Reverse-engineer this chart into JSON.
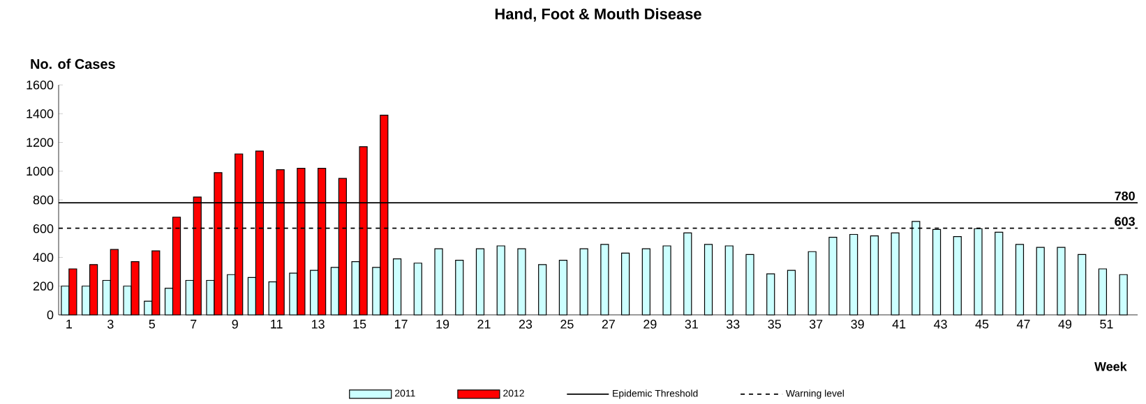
{
  "chart_data": {
    "type": "bar",
    "title": "Hand, Foot &  Mouth Disease",
    "xlabel": "Week",
    "ylabel": "No. of Cases",
    "categories": [
      "1",
      null,
      "3",
      null,
      "5",
      null,
      "7",
      null,
      "9",
      null,
      "11",
      null,
      "13",
      null,
      "15",
      null,
      "17",
      null,
      "19",
      null,
      "21",
      null,
      "23",
      null,
      "25",
      null,
      "27",
      null,
      "29",
      null,
      "31",
      null,
      "33",
      null,
      "35",
      null,
      "37",
      null,
      "39",
      null,
      "41",
      null,
      "43",
      null,
      "45",
      null,
      "47",
      null,
      "49",
      null,
      "51",
      null
    ],
    "series": [
      {
        "name": "2011",
        "color": "#ccffff",
        "values": [
          200,
          200,
          240,
          200,
          95,
          185,
          240,
          240,
          280,
          260,
          230,
          290,
          310,
          330,
          370,
          330,
          390,
          360,
          460,
          380,
          460,
          480,
          460,
          350,
          380,
          460,
          490,
          430,
          460,
          480,
          570,
          490,
          480,
          420,
          285,
          310,
          440,
          540,
          560,
          550,
          570,
          650,
          595,
          545,
          600,
          575,
          490,
          470,
          470,
          420,
          320,
          280
        ]
      },
      {
        "name": "2012",
        "color": "#ff0000",
        "values": [
          320,
          350,
          455,
          370,
          445,
          680,
          820,
          990,
          1120,
          1140,
          1010,
          1020,
          1020,
          950,
          1170,
          1390,
          null,
          null,
          null,
          null,
          null,
          null,
          null,
          null,
          null,
          null,
          null,
          null,
          null,
          null,
          null,
          null,
          null,
          null,
          null,
          null,
          null,
          null,
          null,
          null,
          null,
          null,
          null,
          null,
          null,
          null,
          null,
          null,
          null,
          null,
          null,
          null
        ]
      }
    ],
    "ylim": [
      0,
      1600
    ],
    "yticks": [
      0,
      200,
      400,
      600,
      800,
      1000,
      1200,
      1400,
      1600
    ],
    "ref_lines": [
      {
        "axis": "y",
        "value": 780,
        "label": "Epidemic Threshold",
        "color": "#000000",
        "line_style": "solid"
      },
      {
        "axis": "y",
        "value": 603,
        "label": "Warning level",
        "color": "#000000",
        "line_style": "dashed"
      }
    ],
    "annotations": [
      {
        "text": "780",
        "y": 780
      },
      {
        "text": "603",
        "y": 603
      }
    ],
    "legend": "bottom"
  }
}
